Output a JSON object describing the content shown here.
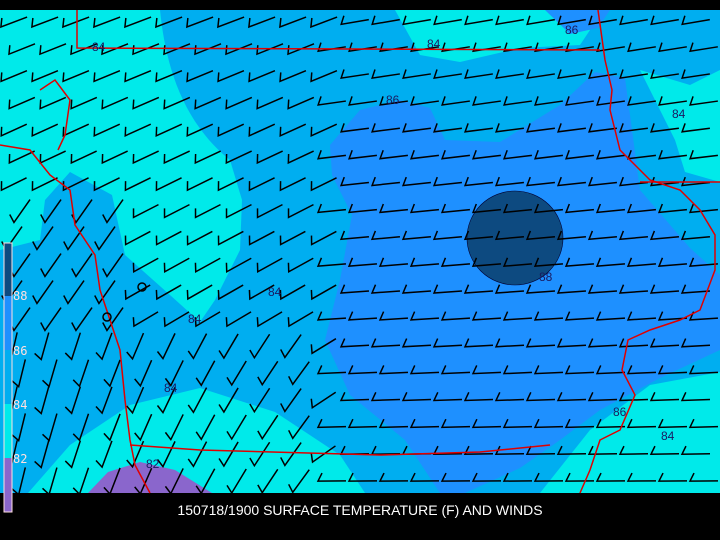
{
  "title": "150718/1900 SURFACE TEMPERATURE (F) AND WINDS",
  "colors": {
    "below_82": "#8a66cc",
    "82_84": "#00eaea",
    "84_86": "#00aef0",
    "86_88": "#1e90ff",
    "above_88": "#0d4a80",
    "borders": "#e00000",
    "barbs": "#000000",
    "background": "#000000"
  },
  "legend": {
    "labels": [
      "88",
      "86",
      "84",
      "82"
    ]
  },
  "contour_labels": [
    {
      "text": "84",
      "region": "northwest"
    },
    {
      "text": "84",
      "region": "north-central"
    },
    {
      "text": "86",
      "region": "northeast"
    },
    {
      "text": "86",
      "region": "north-central"
    },
    {
      "text": "84",
      "region": "east"
    },
    {
      "text": "88",
      "region": "center-east"
    },
    {
      "text": "84",
      "region": "center"
    },
    {
      "text": "84",
      "region": "west-central"
    },
    {
      "text": "84",
      "region": "southwest"
    },
    {
      "text": "86",
      "region": "southeast"
    },
    {
      "text": "84",
      "region": "southeast"
    },
    {
      "text": "82",
      "region": "south-southwest"
    }
  ],
  "layers": [
    "surface temperature contours",
    "wind barbs",
    "state borders"
  ]
}
